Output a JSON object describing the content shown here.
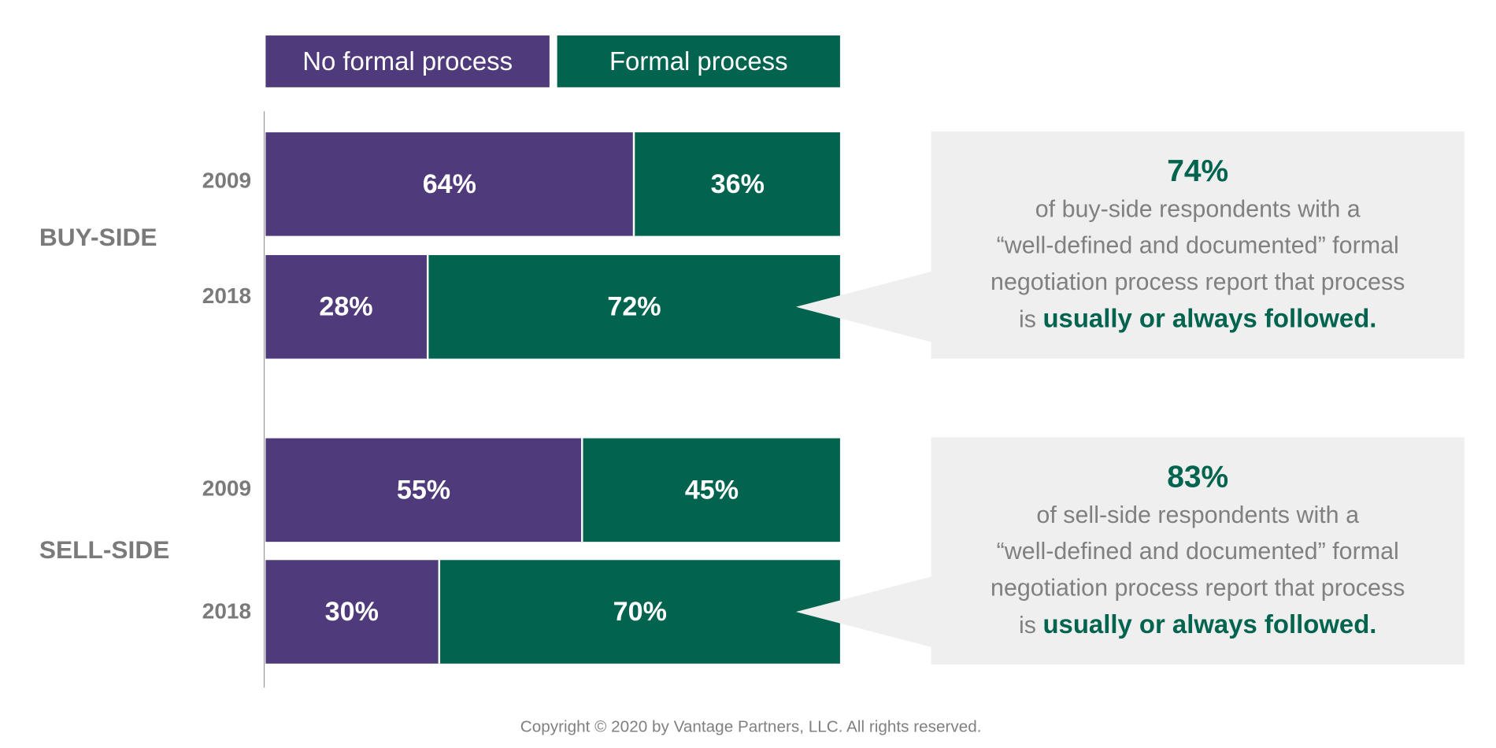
{
  "chart_data": {
    "type": "bar",
    "orientation": "horizontal",
    "stacked": true,
    "normalized_percent": true,
    "legend": {
      "position": "top-left",
      "entries": [
        "No formal process",
        "Formal process"
      ]
    },
    "colors": {
      "No formal process": "#4f3b7b",
      "Formal process": "#02644e"
    },
    "groups": [
      {
        "label": "BUY-SIDE",
        "categories": [
          "2009",
          "2018"
        ],
        "series": [
          {
            "name": "No formal process",
            "values": [
              64,
              28
            ],
            "labels": [
              "64%",
              "28%"
            ]
          },
          {
            "name": "Formal process",
            "values": [
              36,
              72
            ],
            "labels": [
              "36%",
              "72%"
            ]
          }
        ]
      },
      {
        "label": "SELL-SIDE",
        "categories": [
          "2009",
          "2018"
        ],
        "series": [
          {
            "name": "No formal process",
            "values": [
              55,
              30
            ],
            "labels": [
              "55%",
              "30%"
            ]
          },
          {
            "name": "Formal process",
            "values": [
              45,
              70
            ],
            "labels": [
              "45%",
              "70%"
            ]
          }
        ]
      }
    ]
  },
  "callouts": [
    {
      "stat": "74%",
      "line1": "of buy-side respondents with a",
      "line2": "“well-defined and documented” formal",
      "line3": "negotiation process report that process",
      "line4_pre": "is ",
      "line4_bold": "usually or always followed."
    },
    {
      "stat": "83%",
      "line1": "of sell-side respondents with a",
      "line2": "“well-defined and documented” formal",
      "line3": "negotiation process report that process",
      "line4_pre": "is ",
      "line4_bold": "usually or always followed."
    }
  ],
  "footer": {
    "copyright": "Copyright © 2020 by Vantage Partners, LLC. All rights reserved."
  }
}
